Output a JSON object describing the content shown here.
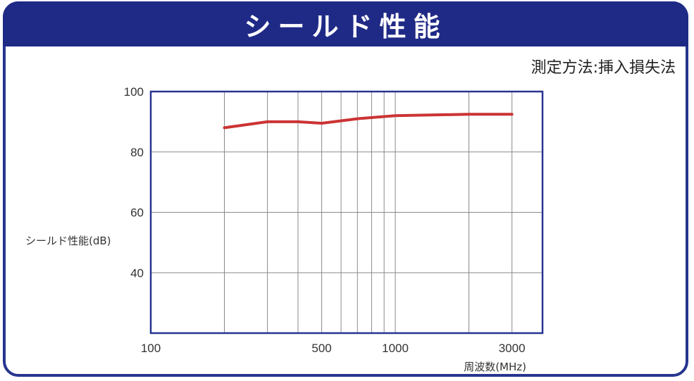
{
  "header": {
    "title": "シールド性能"
  },
  "method": {
    "label": "測定方法:挿入損失法"
  },
  "colors": {
    "frame": "#27358f",
    "header_bg": "#1f2a86",
    "series": "#cc3333",
    "grid": "#8a8a8a"
  },
  "chart_data": {
    "type": "line",
    "title": "シールド性能",
    "subtitle": "測定方法:挿入損失法",
    "xlabel": "周波数(MHz)",
    "ylabel": "シールド性能(dB)",
    "xscale": "log",
    "xlim": [
      100,
      4000
    ],
    "ylim": [
      20,
      100
    ],
    "x_ticks": [
      100,
      500,
      1000,
      3000
    ],
    "x_tick_labels": [
      "100",
      "500",
      "1000",
      "3000"
    ],
    "x_gridlines": [
      200,
      300,
      400,
      500,
      600,
      700,
      800,
      900,
      1000,
      2000,
      3000
    ],
    "y_ticks": [
      40,
      60,
      80,
      100
    ],
    "y_tick_labels": [
      "40",
      "60",
      "80",
      "100"
    ],
    "grid": true,
    "legend": null,
    "series": [
      {
        "name": "シールド性能",
        "x": [
          200,
          300,
          400,
          500,
          700,
          1000,
          2000,
          3000
        ],
        "values": [
          88,
          90,
          90,
          89.5,
          91,
          92,
          92.5,
          92.5
        ]
      }
    ]
  }
}
